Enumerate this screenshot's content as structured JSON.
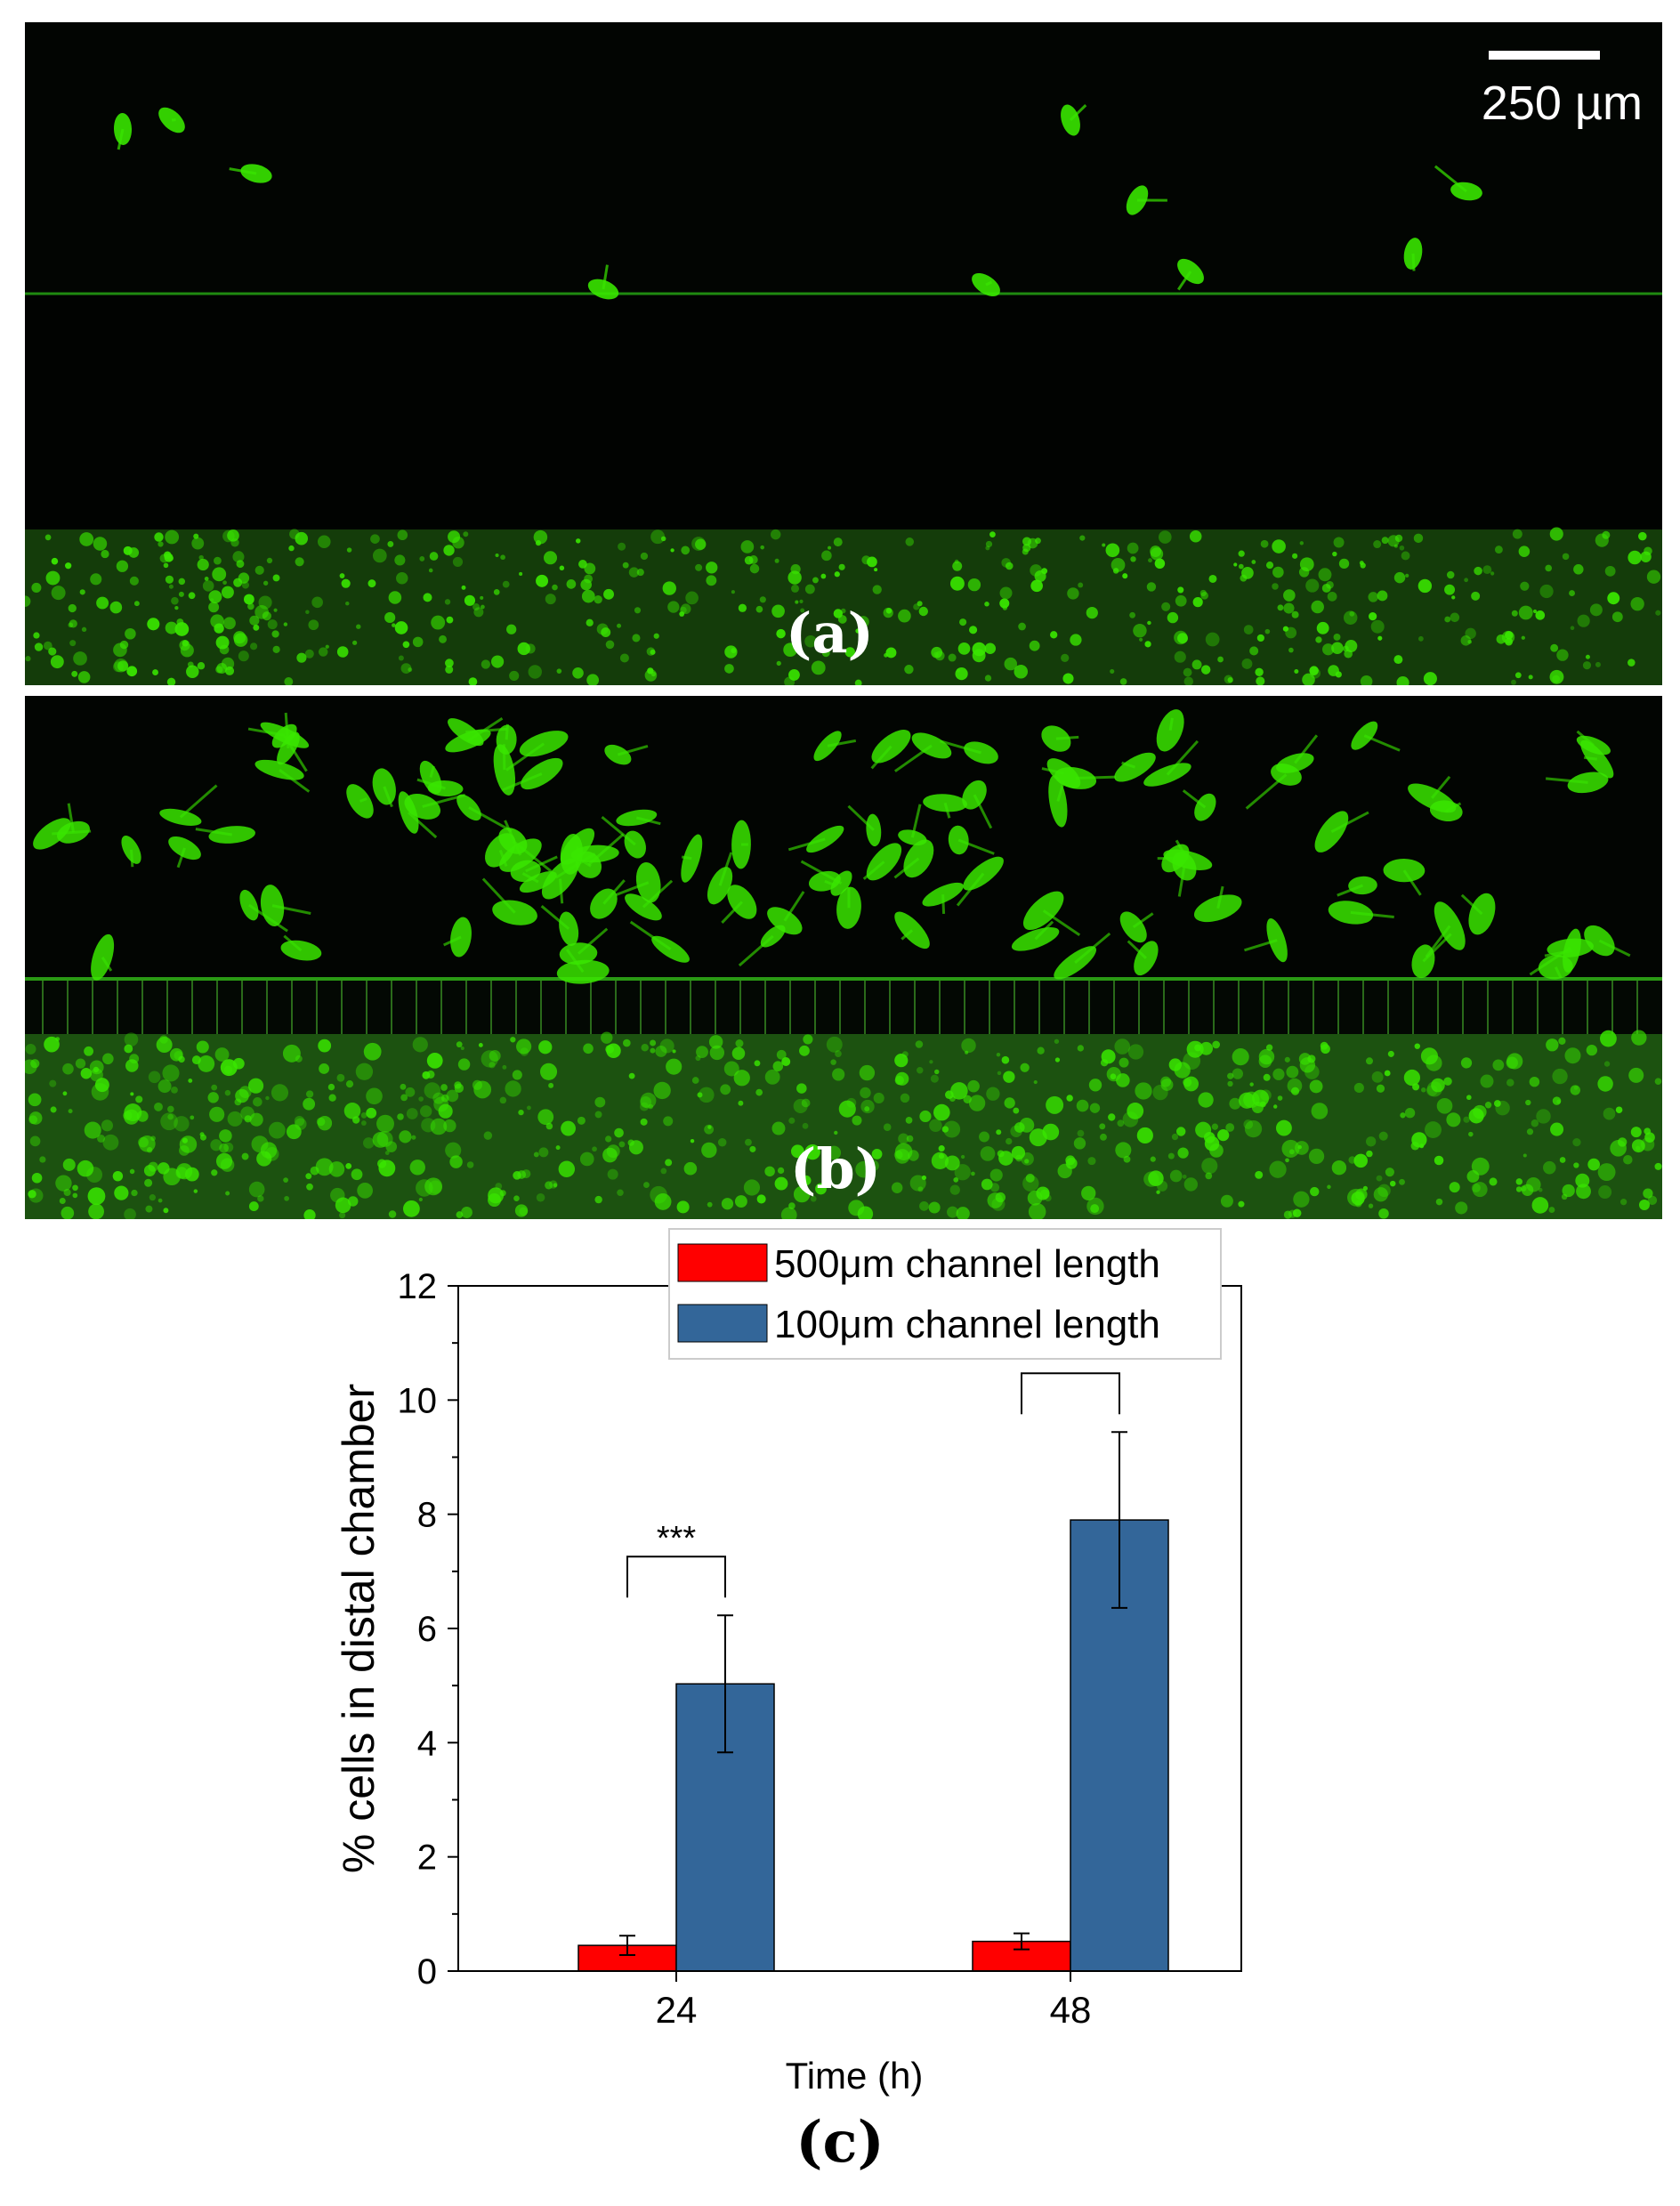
{
  "panels": [
    {
      "label": "(a)",
      "scale_bar": "250 µm"
    },
    {
      "label": "(b)"
    }
  ],
  "caption_c": "(c)",
  "colors": {
    "series_500": "#ff0000",
    "series_100": "#336699",
    "fluorescence": "#39e600"
  },
  "chart_data": {
    "type": "bar",
    "categories": [
      "24",
      "48"
    ],
    "xlabel": "Time (h)",
    "ylabel": "% cells in distal chamber",
    "ylim": [
      0,
      12
    ],
    "yticks": [
      0,
      2,
      4,
      6,
      8,
      10,
      12
    ],
    "grid": false,
    "legend_position": "top-right",
    "series": [
      {
        "name": "500μm channel length",
        "color": "#ff0000",
        "values": [
          0.45,
          0.52
        ],
        "errors": [
          0.17,
          0.14
        ]
      },
      {
        "name": "100μm channel length",
        "color": "#336699",
        "values": [
          5.03,
          7.9
        ],
        "errors": [
          1.2,
          1.54
        ]
      }
    ],
    "significance": [
      {
        "category": "24",
        "label": "***"
      },
      {
        "category": "48",
        "label": "***"
      }
    ]
  }
}
